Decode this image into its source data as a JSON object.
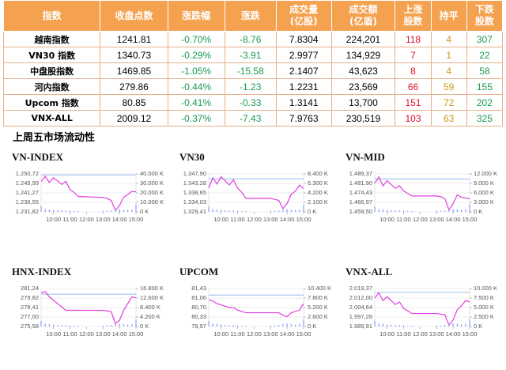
{
  "table": {
    "header": [
      "指数",
      "收盘点数",
      "涨跌幅",
      "涨跌",
      "成交量\n(亿股)",
      "成交额\n(亿盾)",
      "上涨\n股数",
      "持平",
      "下跌\n股数"
    ],
    "rows": [
      [
        "越南指数",
        "1241.81",
        "-0.70%",
        "-8.76",
        "7.8304",
        "224,201",
        "118",
        "4",
        "307"
      ],
      [
        "VN30 指数",
        "1340.73",
        "-0.29%",
        "-3.91",
        "2.9977",
        "134,929",
        "7",
        "1",
        "22"
      ],
      [
        "中盘股指数",
        "1469.85",
        "-1.05%",
        "-15.58",
        "2.1407",
        "43,623",
        "8",
        "4",
        "58"
      ],
      [
        "河内指数",
        "279.86",
        "-0.44%",
        "-1.23",
        "1.2231",
        "23,569",
        "66",
        "59",
        "155"
      ],
      [
        "Upcom 指数",
        "80.85",
        "-0.41%",
        "-0.33",
        "1.3141",
        "13,700",
        "151",
        "72",
        "202"
      ],
      [
        "VNX-ALL",
        "2009.12",
        "-0.37%",
        "-7.43",
        "7.9763",
        "230,519",
        "103",
        "63",
        "325"
      ]
    ]
  },
  "section_title": "上周五市场流动性",
  "chart_data": [
    {
      "type": "line",
      "title": "VN-INDEX",
      "x": [
        "09:15",
        "09:30",
        "09:45",
        "10:00",
        "10:15",
        "10:30",
        "10:45",
        "11:00",
        "11:15",
        "11:30",
        "13:00",
        "13:15",
        "13:30",
        "13:45",
        "14:00",
        "14:15",
        "14:30",
        "14:45",
        "15:00"
      ],
      "xlim": [
        "09:15",
        "15:00"
      ],
      "xticks": [
        "10:00",
        "11:00",
        "12:00",
        "13:00",
        "14:00",
        "15:00"
      ],
      "ylim": [
        1231.82,
        1250.72
      ],
      "yticks": [
        {
          "value": 1250.72,
          "label": "1.250,72"
        },
        {
          "value": 1245.99,
          "label": "1.245,99"
        },
        {
          "value": 1241.27,
          "label": "1.241,27"
        },
        {
          "value": 1236.55,
          "label": "1.236,55"
        },
        {
          "value": 1231.82,
          "label": "1.231,82"
        }
      ],
      "y2lim": [
        0,
        40000
      ],
      "y2ticks": [
        {
          "value": 40000,
          "label": "40.000 K"
        },
        {
          "value": 30000,
          "label": "30.000 K"
        },
        {
          "value": 20000,
          "label": "20.000 K"
        },
        {
          "value": 10000,
          "label": "10.000 K"
        },
        {
          "value": 0,
          "label": "0 K"
        }
      ],
      "reference": 1250.2,
      "reference_color": "#a8c8f0",
      "series": [
        {
          "type": "line",
          "color": "#e040e0",
          "values": [
            1247.0,
            1249.5,
            1246.5,
            1248.8,
            1247.2,
            1245.5,
            1247.0,
            1243.0,
            1241.5,
            1239.5,
            1239.0,
            1238.5,
            1237.5,
            1232.5,
            1235.0,
            1239.0,
            1240.5,
            1242.0,
            1241.81
          ]
        },
        {
          "type": "bar",
          "axis": "y2",
          "color": "#8a9cff",
          "values": [
            6000,
            3000,
            2500,
            2000,
            1800,
            1500,
            1500,
            1200,
            1000,
            800,
            1000,
            1200,
            1500,
            2500,
            3000,
            2500,
            2000,
            2500,
            8000
          ]
        }
      ]
    },
    {
      "type": "line",
      "title": "VN30",
      "x": [
        "09:15",
        "09:30",
        "09:45",
        "10:00",
        "10:15",
        "10:30",
        "10:45",
        "11:00",
        "11:15",
        "11:30",
        "13:00",
        "13:15",
        "13:30",
        "13:45",
        "14:00",
        "14:15",
        "14:30",
        "14:45",
        "15:00"
      ],
      "xlim": [
        "09:15",
        "15:00"
      ],
      "xticks": [
        "10:00",
        "11:00",
        "12:00",
        "13:00",
        "14:00",
        "15:00"
      ],
      "ylim": [
        1329.41,
        1347.9
      ],
      "yticks": [
        {
          "value": 1347.9,
          "label": "1.347,90"
        },
        {
          "value": 1343.28,
          "label": "1.343,28"
        },
        {
          "value": 1338.65,
          "label": "1.338,65"
        },
        {
          "value": 1334.03,
          "label": "1.334,03"
        },
        {
          "value": 1329.41,
          "label": "1.329,41"
        }
      ],
      "y2lim": [
        0,
        8400
      ],
      "y2ticks": [
        {
          "value": 8400,
          "label": "8.400 K"
        },
        {
          "value": 6300,
          "label": "6.300 K"
        },
        {
          "value": 4200,
          "label": "4.200 K"
        },
        {
          "value": 2100,
          "label": "2.100 K"
        },
        {
          "value": 0,
          "label": "0 K"
        }
      ],
      "reference": 1345.5,
      "reference_color": "#a8c8f0",
      "series": [
        {
          "type": "line",
          "color": "#e040e0",
          "values": [
            1341.0,
            1346.0,
            1343.0,
            1346.5,
            1344.5,
            1342.5,
            1345.0,
            1341.0,
            1339.0,
            1336.0,
            1336.0,
            1335.5,
            1335.0,
            1331.0,
            1333.5,
            1338.0,
            1339.5,
            1342.5,
            1340.73
          ]
        },
        {
          "type": "bar",
          "axis": "y2",
          "color": "#8a9cff",
          "values": [
            1200,
            600,
            500,
            400,
            360,
            300,
            300,
            240,
            200,
            160,
            200,
            240,
            300,
            500,
            600,
            500,
            400,
            500,
            1600
          ]
        }
      ]
    },
    {
      "type": "line",
      "title": "VN-MID",
      "x": [
        "09:15",
        "09:30",
        "09:45",
        "10:00",
        "10:15",
        "10:30",
        "10:45",
        "11:00",
        "11:15",
        "11:30",
        "13:00",
        "13:15",
        "13:30",
        "13:45",
        "14:00",
        "14:15",
        "14:30",
        "14:45",
        "15:00"
      ],
      "xlim": [
        "09:15",
        "15:00"
      ],
      "xticks": [
        "10:00",
        "11:00",
        "12:00",
        "13:00",
        "14:00",
        "15:00"
      ],
      "ylim": [
        1459.5,
        1489.37
      ],
      "yticks": [
        {
          "value": 1489.37,
          "label": "1.489,37"
        },
        {
          "value": 1481.9,
          "label": "1.481,90"
        },
        {
          "value": 1474.43,
          "label": "1.474,43"
        },
        {
          "value": 1466.97,
          "label": "1.466,97"
        },
        {
          "value": 1459.5,
          "label": "1.459,50"
        }
      ],
      "y2lim": [
        0,
        12000
      ],
      "y2ticks": [
        {
          "value": 12000,
          "label": "12.000 K"
        },
        {
          "value": 9000,
          "label": "9.000 K"
        },
        {
          "value": 6000,
          "label": "6.000 K"
        },
        {
          "value": 3000,
          "label": "3.000 K"
        },
        {
          "value": 0,
          "label": "0 K"
        }
      ],
      "reference": 1485.4,
      "reference_color": "#a8c8f0",
      "series": [
        {
          "type": "line",
          "color": "#e040e0",
          "values": [
            1482,
            1487,
            1480,
            1484,
            1481,
            1478,
            1480,
            1476,
            1474,
            1472,
            1472,
            1471.5,
            1470,
            1461,
            1466,
            1473,
            1471,
            1470.5,
            1469.85
          ]
        },
        {
          "type": "bar",
          "axis": "y2",
          "color": "#8a9cff",
          "values": [
            1800,
            900,
            800,
            600,
            500,
            450,
            450,
            350,
            300,
            250,
            300,
            350,
            450,
            800,
            900,
            800,
            600,
            800,
            2400
          ]
        }
      ]
    },
    {
      "type": "line",
      "title": "HNX-INDEX",
      "x": [
        "09:15",
        "09:30",
        "09:45",
        "10:00",
        "10:15",
        "10:30",
        "10:45",
        "11:00",
        "11:15",
        "11:30",
        "13:00",
        "13:15",
        "13:30",
        "13:45",
        "14:00",
        "14:15",
        "14:30",
        "14:45",
        "15:00"
      ],
      "xlim": [
        "09:15",
        "15:00"
      ],
      "xticks": [
        "10:00",
        "11:00",
        "12:00",
        "13:00",
        "14:00",
        "15:00"
      ],
      "ylim": [
        275.58,
        281.24
      ],
      "yticks": [
        {
          "value": 281.24,
          "label": "281,24"
        },
        {
          "value": 279.82,
          "label": "279,82"
        },
        {
          "value": 278.41,
          "label": "278,41"
        },
        {
          "value": 277.0,
          "label": "277,00"
        },
        {
          "value": 275.58,
          "label": "275,58"
        }
      ],
      "y2lim": [
        0,
        16800
      ],
      "y2ticks": [
        {
          "value": 16800,
          "label": "16.800 K"
        },
        {
          "value": 12600,
          "label": "12.600 K"
        },
        {
          "value": 8400,
          "label": "8.400 K"
        },
        {
          "value": 4200,
          "label": "4.200 K"
        },
        {
          "value": 0,
          "label": "0 K"
        }
      ],
      "reference": 280.4,
      "reference_color": "#a8c8f0",
      "series": [
        {
          "type": "line",
          "color": "#e040e0",
          "values": [
            280.6,
            280.8,
            280.0,
            279.5,
            279.0,
            278.5,
            278.0,
            278.0,
            278.0,
            278.0,
            278.0,
            277.9,
            277.8,
            276.0,
            276.5,
            278.0,
            279.0,
            280.0,
            279.86
          ]
        },
        {
          "type": "bar",
          "axis": "y2",
          "color": "#8a9cff",
          "values": [
            2500,
            1200,
            1000,
            800,
            700,
            600,
            600,
            500,
            400,
            350,
            400,
            500,
            600,
            1000,
            1200,
            1000,
            800,
            1000,
            3200
          ]
        }
      ]
    },
    {
      "type": "line",
      "title": "UPCOM",
      "x": [
        "09:15",
        "09:30",
        "09:45",
        "10:00",
        "10:15",
        "10:30",
        "10:45",
        "11:00",
        "11:15",
        "11:30",
        "13:00",
        "13:15",
        "13:30",
        "13:45",
        "14:00",
        "14:15",
        "14:30",
        "14:45",
        "15:00"
      ],
      "xlim": [
        "09:15",
        "15:00"
      ],
      "xticks": [
        "10:00",
        "11:00",
        "12:00",
        "13:00",
        "14:00",
        "15:00"
      ],
      "ylim": [
        79.97,
        81.43
      ],
      "yticks": [
        {
          "value": 81.43,
          "label": "81,43"
        },
        {
          "value": 81.06,
          "label": "81,06"
        },
        {
          "value": 80.7,
          "label": "80,70"
        },
        {
          "value": 80.33,
          "label": "80,33"
        },
        {
          "value": 79.97,
          "label": "79,97"
        }
      ],
      "y2lim": [
        0,
        10400
      ],
      "y2ticks": [
        {
          "value": 10400,
          "label": "10.400 K"
        },
        {
          "value": 7800,
          "label": "7.800 K"
        },
        {
          "value": 5200,
          "label": "5.200 K"
        },
        {
          "value": 2600,
          "label": "2.600 K"
        },
        {
          "value": 0,
          "label": "0 K"
        }
      ],
      "reference": 81.18,
      "reference_color": "#a8c8f0",
      "series": [
        {
          "type": "line",
          "color": "#e040e0",
          "values": [
            81.0,
            80.95,
            80.85,
            80.8,
            80.75,
            80.7,
            80.7,
            80.6,
            80.55,
            80.5,
            80.5,
            80.5,
            80.5,
            80.4,
            80.35,
            80.5,
            80.55,
            80.6,
            80.85
          ]
        },
        {
          "type": "bar",
          "axis": "y2",
          "color": "#8a9cff",
          "values": [
            1500,
            800,
            700,
            500,
            450,
            400,
            400,
            300,
            250,
            200,
            250,
            300,
            400,
            700,
            800,
            700,
            500,
            700,
            2000
          ]
        }
      ]
    },
    {
      "type": "line",
      "title": "VNX-ALL",
      "x": [
        "09:15",
        "09:30",
        "09:45",
        "10:00",
        "10:15",
        "10:30",
        "10:45",
        "11:00",
        "11:15",
        "11:30",
        "13:00",
        "13:15",
        "13:30",
        "13:45",
        "14:00",
        "14:15",
        "14:30",
        "14:45",
        "15:00"
      ],
      "xlim": [
        "09:15",
        "15:00"
      ],
      "xticks": [
        "10:00",
        "11:00",
        "12:00",
        "13:00",
        "14:00",
        "15:00"
      ],
      "ylim": [
        1989.91,
        2019.37
      ],
      "yticks": [
        {
          "value": 2019.37,
          "label": "2.019,37"
        },
        {
          "value": 2012.0,
          "label": "2.012,00"
        },
        {
          "value": 2004.64,
          "label": "2.004,64"
        },
        {
          "value": 1997.28,
          "label": "1.997,28"
        },
        {
          "value": 1989.91,
          "label": "1.989,91"
        }
      ],
      "y2lim": [
        0,
        10000
      ],
      "y2ticks": [
        {
          "value": 10000,
          "label": "10.000 K"
        },
        {
          "value": 7500,
          "label": "7.500 K"
        },
        {
          "value": 5000,
          "label": "5.000 K"
        },
        {
          "value": 2500,
          "label": "2.500 K"
        },
        {
          "value": 0,
          "label": "0 K"
        }
      ],
      "reference": 2016.5,
      "reference_color": "#a8c8f0",
      "series": [
        {
          "type": "line",
          "color": "#e040e0",
          "values": [
            2012,
            2016,
            2010,
            2013,
            2010,
            2007,
            2009,
            2004,
            2002,
            2000,
            2000,
            1999.5,
            1999,
            1991,
            1995,
            2003,
            2006,
            2010,
            2009.12
          ]
        },
        {
          "type": "bar",
          "axis": "y2",
          "color": "#8a9cff",
          "values": [
            1500,
            800,
            700,
            500,
            450,
            400,
            400,
            300,
            250,
            200,
            250,
            300,
            400,
            700,
            800,
            700,
            500,
            700,
            2000
          ]
        }
      ]
    }
  ]
}
